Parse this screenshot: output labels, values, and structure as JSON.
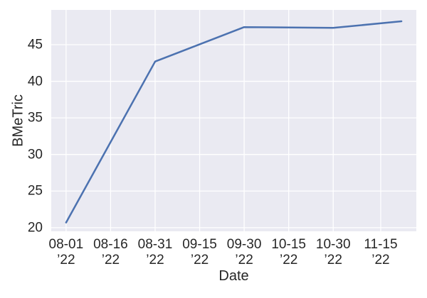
{
  "chart_data": {
    "type": "line",
    "title": "",
    "xlabel": "Date",
    "ylabel": "BMeTric",
    "grid": true,
    "legend_visible": false,
    "plot_background": "#eaeaf2",
    "grid_color": "#ffffff",
    "text_color": "#262626",
    "x_domain": [
      "2022-07-27",
      "2022-11-27"
    ],
    "ylim": [
      19.5,
      49.75
    ],
    "yticks": [
      20,
      25,
      30,
      35,
      40,
      45
    ],
    "xticks": [
      {
        "date": "2022-08-01",
        "lines": [
          "08-01",
          "’22"
        ]
      },
      {
        "date": "2022-08-16",
        "lines": [
          "08-16",
          "’22"
        ]
      },
      {
        "date": "2022-08-31",
        "lines": [
          "08-31",
          "’22"
        ]
      },
      {
        "date": "2022-09-15",
        "lines": [
          "09-15",
          "’22"
        ]
      },
      {
        "date": "2022-09-30",
        "lines": [
          "09-30",
          "’22"
        ]
      },
      {
        "date": "2022-10-15",
        "lines": [
          "10-15",
          "’22"
        ]
      },
      {
        "date": "2022-10-30",
        "lines": [
          "10-30",
          "’22"
        ]
      },
      {
        "date": "2022-11-15",
        "lines": [
          "11-15",
          "’22"
        ]
      }
    ],
    "series": [
      {
        "name": "BMeTric",
        "color": "#4c72b0",
        "line_width": 2.5,
        "points": [
          [
            "2022-08-01",
            20.7
          ],
          [
            "2022-08-31",
            42.7
          ],
          [
            "2022-09-30",
            47.4
          ],
          [
            "2022-10-30",
            47.3
          ],
          [
            "2022-11-22",
            48.2
          ]
        ]
      }
    ]
  }
}
